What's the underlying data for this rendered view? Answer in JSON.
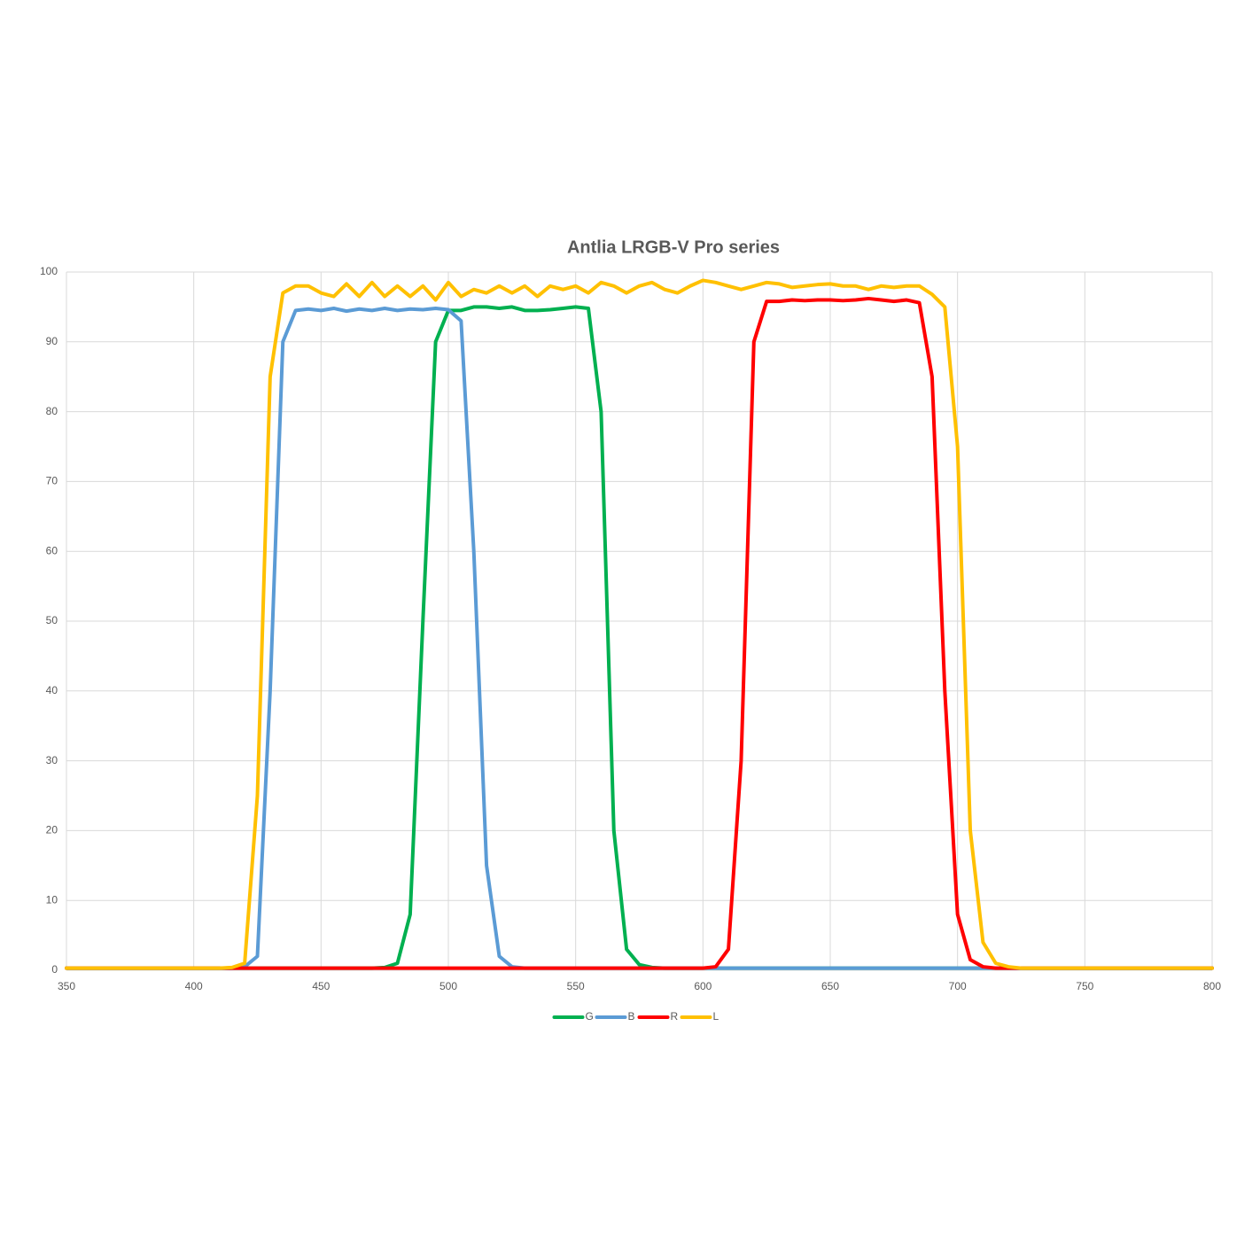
{
  "chart_data": {
    "type": "line",
    "title": "Antlia LRGB-V Pro series",
    "x": [
      350,
      355,
      360,
      365,
      370,
      375,
      380,
      385,
      390,
      395,
      400,
      405,
      410,
      415,
      420,
      425,
      430,
      435,
      440,
      445,
      450,
      455,
      460,
      465,
      470,
      475,
      480,
      485,
      490,
      495,
      500,
      505,
      510,
      515,
      520,
      525,
      530,
      535,
      540,
      545,
      550,
      555,
      560,
      565,
      570,
      575,
      580,
      585,
      590,
      595,
      600,
      605,
      610,
      615,
      620,
      625,
      630,
      635,
      640,
      645,
      650,
      655,
      660,
      665,
      670,
      675,
      680,
      685,
      690,
      695,
      700,
      705,
      710,
      715,
      720,
      725,
      730,
      735,
      740,
      745,
      750,
      755,
      760,
      765,
      770,
      775,
      780,
      785,
      790,
      795,
      800
    ],
    "series": [
      {
        "name": "G",
        "color": "#00b050",
        "values": [
          0.3,
          0.3,
          0.3,
          0.3,
          0.3,
          0.3,
          0.3,
          0.3,
          0.3,
          0.3,
          0.3,
          0.3,
          0.3,
          0.3,
          0.3,
          0.3,
          0.3,
          0.3,
          0.3,
          0.3,
          0.3,
          0.3,
          0.3,
          0.3,
          0.3,
          0.4,
          1,
          8,
          50,
          90,
          94.5,
          94.5,
          95,
          95,
          94.8,
          95,
          94.5,
          94.5,
          94.6,
          94.8,
          95,
          94.8,
          80,
          20,
          3,
          0.8,
          0.4,
          0.3,
          0.3,
          0.3,
          0.3,
          0.3,
          0.3,
          0.3,
          0.3,
          0.3,
          0.3,
          0.3,
          0.3,
          0.3,
          0.3,
          0.3,
          0.3,
          0.3,
          0.3,
          0.3,
          0.3,
          0.3,
          0.3,
          0.3,
          0.3,
          0.3,
          0.3,
          0.3,
          0.3,
          0.3,
          0.3,
          0.3,
          0.3,
          0.3,
          0.3,
          0.3,
          0.3,
          0.3,
          0.3,
          0.3,
          0.3,
          0.3,
          0.3,
          0.3,
          0.3
        ]
      },
      {
        "name": "B",
        "color": "#5b9bd5",
        "values": [
          0.3,
          0.3,
          0.3,
          0.3,
          0.3,
          0.3,
          0.3,
          0.3,
          0.3,
          0.3,
          0.3,
          0.3,
          0.3,
          0.3,
          0.5,
          2,
          40,
          90,
          94.5,
          94.7,
          94.5,
          94.8,
          94.4,
          94.7,
          94.5,
          94.8,
          94.5,
          94.7,
          94.6,
          94.8,
          94.6,
          93,
          60,
          15,
          2,
          0.5,
          0.3,
          0.3,
          0.3,
          0.3,
          0.3,
          0.3,
          0.3,
          0.3,
          0.3,
          0.3,
          0.3,
          0.3,
          0.3,
          0.3,
          0.3,
          0.3,
          0.3,
          0.3,
          0.3,
          0.3,
          0.3,
          0.3,
          0.3,
          0.3,
          0.3,
          0.3,
          0.3,
          0.3,
          0.3,
          0.3,
          0.3,
          0.3,
          0.3,
          0.3,
          0.3,
          0.3,
          0.3,
          0.3,
          0.3,
          0.3,
          0.3,
          0.3,
          0.3,
          0.3,
          0.3,
          0.3,
          0.3,
          0.3,
          0.3,
          0.3,
          0.3,
          0.3,
          0.3,
          0.3,
          0.3
        ]
      },
      {
        "name": "R",
        "color": "#ff0000",
        "values": [
          0.3,
          0.3,
          0.3,
          0.3,
          0.3,
          0.3,
          0.3,
          0.3,
          0.3,
          0.3,
          0.3,
          0.3,
          0.3,
          0.3,
          0.3,
          0.3,
          0.3,
          0.3,
          0.3,
          0.3,
          0.3,
          0.3,
          0.3,
          0.3,
          0.3,
          0.3,
          0.3,
          0.3,
          0.3,
          0.3,
          0.3,
          0.3,
          0.3,
          0.3,
          0.3,
          0.3,
          0.3,
          0.3,
          0.3,
          0.3,
          0.3,
          0.3,
          0.3,
          0.3,
          0.3,
          0.3,
          0.3,
          0.3,
          0.3,
          0.3,
          0.3,
          0.5,
          3,
          30,
          90,
          95.8,
          95.8,
          96,
          95.9,
          96,
          96,
          95.9,
          96,
          96.2,
          96,
          95.8,
          96,
          95.6,
          85,
          40,
          8,
          1.5,
          0.5,
          0.3,
          0.3,
          0.3,
          0.3,
          0.3,
          0.3,
          0.3,
          0.3,
          0.3,
          0.3,
          0.3,
          0.3,
          0.3,
          0.3,
          0.3,
          0.3,
          0.3,
          0.3
        ]
      },
      {
        "name": "L",
        "color": "#ffc000",
        "values": [
          0.3,
          0.3,
          0.3,
          0.3,
          0.3,
          0.3,
          0.3,
          0.3,
          0.3,
          0.3,
          0.3,
          0.3,
          0.3,
          0.4,
          1,
          25,
          85,
          97,
          98,
          98,
          97,
          96.5,
          98.3,
          96.5,
          98.5,
          96.5,
          98,
          96.5,
          98,
          96,
          98.5,
          96.5,
          97.5,
          97,
          98,
          97,
          98,
          96.5,
          98,
          97.5,
          98,
          97,
          98.5,
          98,
          97,
          98,
          98.5,
          97.5,
          97,
          98,
          98.8,
          98.5,
          98,
          97.5,
          98,
          98.5,
          98.3,
          97.8,
          98,
          98.2,
          98.3,
          98,
          98,
          97.5,
          98,
          97.8,
          98,
          98,
          96.8,
          95,
          75,
          20,
          4,
          1,
          0.5,
          0.3,
          0.3,
          0.3,
          0.3,
          0.3,
          0.3,
          0.3,
          0.3,
          0.3,
          0.3,
          0.3,
          0.3,
          0.3,
          0.3,
          0.3,
          0.3
        ]
      }
    ],
    "xlim": [
      350,
      800
    ],
    "xticks": [
      350,
      400,
      450,
      500,
      550,
      600,
      650,
      700,
      750,
      800
    ],
    "ylim": [
      0,
      100
    ],
    "yticks": [
      0,
      10,
      20,
      30,
      40,
      50,
      60,
      70,
      80,
      90,
      100
    ],
    "grid": true,
    "legend": "bottom"
  }
}
